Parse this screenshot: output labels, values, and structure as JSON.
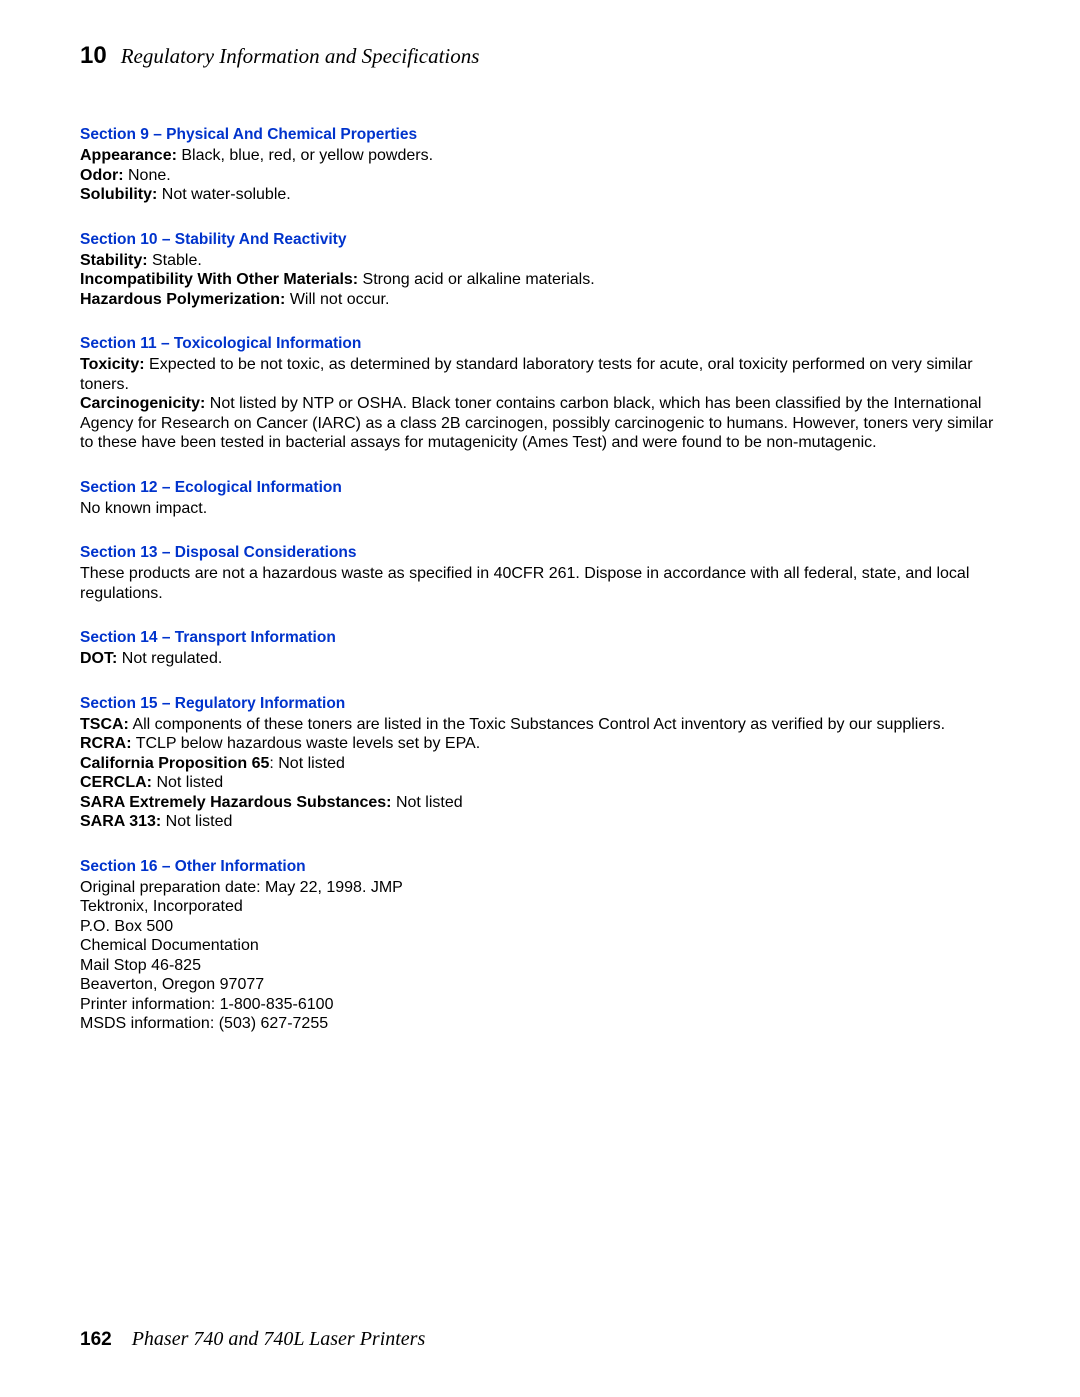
{
  "header": {
    "chapter_num": "10",
    "chapter_title": "Regulatory Information and Specifications"
  },
  "footer": {
    "page_num": "162",
    "doc_title": "Phaser 740 and 740L Laser Printers"
  },
  "colors": {
    "heading": "#0033cc",
    "text": "#000000",
    "background": "#ffffff"
  },
  "s9": {
    "heading": "Section 9 – Physical And Chemical Properties",
    "l1a": "Appearance:",
    "l1b": " Black, blue, red, or yellow powders.",
    "l2a": "Odor:",
    "l2b": " None.",
    "l3a": "Solubility:",
    "l3b": " Not water-soluble."
  },
  "s10": {
    "heading": "Section 10 – Stability And Reactivity",
    "l1a": "Stability:",
    "l1b": " Stable.",
    "l2a": "Incompatibility With Other Materials:",
    "l2b": " Strong acid or alkaline materials.",
    "l3a": "Hazardous Polymerization:",
    "l3b": " Will not occur."
  },
  "s11": {
    "heading": "Section 11 – Toxicological Information",
    "l1a": "Toxicity:",
    "l1b": " Expected to be not toxic, as determined by standard laboratory tests for acute, oral toxicity performed on very similar toners.",
    "l2a": "Carcinogenicity:",
    "l2b": "  Not listed by NTP or OSHA. Black toner contains carbon black, which has been classified by the International Agency for Research on Cancer (IARC) as a class 2B carcinogen, possibly carcinogenic to humans.  However, toners very similar to these have been tested in bacterial assays for mutagenicity (Ames Test) and were found to be non-mutagenic."
  },
  "s12": {
    "heading": "Section 12 – Ecological Information",
    "l1": "No known impact."
  },
  "s13": {
    "heading": "Section 13 – Disposal Considerations",
    "l1": "These products are not a hazardous waste as specified in 40CFR 261.  Dispose in accordance with all federal, state, and local regulations."
  },
  "s14": {
    "heading": "Section 14 – Transport Information",
    "l1a": "DOT:",
    "l1b": " Not regulated."
  },
  "s15": {
    "heading": "Section 15 – Regulatory Information",
    "l1a": "TSCA:",
    "l1b": " All components of these toners are listed in the Toxic Substances Control Act inventory as verified by our suppliers.",
    "l2a": "RCRA:",
    "l2b": " TCLP below hazardous waste levels set by EPA.",
    "l3a": "California Proposition 65",
    "l3b": ": Not listed",
    "l4a": "CERCLA:",
    "l4b": "  Not listed",
    "l5a": "SARA Extremely Hazardous Substances:",
    "l5b": "  Not listed",
    "l6a": "SARA 313:",
    "l6b": "  Not listed"
  },
  "s16": {
    "heading": "Section 16 – Other Information",
    "l1": "Original preparation date: May 22, 1998.  JMP",
    "l2": "Tektronix, Incorporated",
    "l3": "P.O. Box 500",
    "l4": "Chemical Documentation",
    "l5": "Mail Stop 46-825",
    "l6": "Beaverton, Oregon 97077",
    "l7": "Printer information: 1-800-835-6100",
    "l8": "MSDS information: (503) 627-7255"
  }
}
